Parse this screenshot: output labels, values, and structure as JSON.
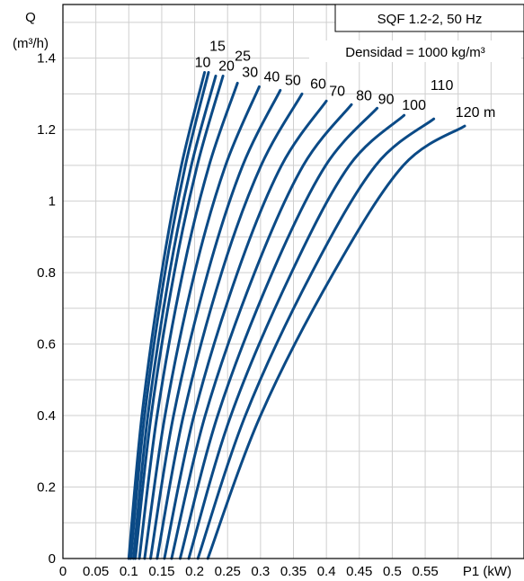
{
  "chart_data": {
    "type": "line",
    "title": "SQF 1.2-2, 50 Hz",
    "subtitle": "Densidad = 1000 kg/m³",
    "ylabel_top": "Q",
    "ylabel_unit": "(m³/h)",
    "xlabel": "P1 (kW)",
    "xlim": [
      0,
      0.7
    ],
    "ylim": [
      0,
      1.55
    ],
    "x_ticks": [
      "0",
      "0.05",
      "0.1",
      "0.15",
      "0.2",
      "0.25",
      "0.3",
      "0.35",
      "0.4",
      "0.45",
      "0.5",
      "0.55"
    ],
    "y_ticks": [
      "0",
      "0.2",
      "0.4",
      "0.6",
      "0.8",
      "1",
      "1.2",
      "1.4"
    ],
    "grid": true,
    "line_color": "#0b4a86",
    "series": [
      {
        "name": "10",
        "x": [
          0.1,
          0.12,
          0.15,
          0.18,
          0.215
        ],
        "y": [
          0,
          0.4,
          0.8,
          1.1,
          1.36
        ]
      },
      {
        "name": "15",
        "x": [
          0.103,
          0.124,
          0.155,
          0.186,
          0.221
        ],
        "y": [
          0,
          0.4,
          0.8,
          1.1,
          1.36
        ]
      },
      {
        "name": "20",
        "x": [
          0.107,
          0.129,
          0.162,
          0.195,
          0.232
        ],
        "y": [
          0,
          0.4,
          0.8,
          1.1,
          1.35
        ]
      },
      {
        "name": "25",
        "x": [
          0.11,
          0.134,
          0.169,
          0.204,
          0.243
        ],
        "y": [
          0,
          0.4,
          0.8,
          1.1,
          1.35
        ]
      },
      {
        "name": "30",
        "x": [
          0.116,
          0.143,
          0.182,
          0.222,
          0.265
        ],
        "y": [
          0,
          0.4,
          0.8,
          1.1,
          1.33
        ]
      },
      {
        "name": "40",
        "x": [
          0.124,
          0.155,
          0.2,
          0.247,
          0.298
        ],
        "y": [
          0,
          0.4,
          0.8,
          1.1,
          1.32
        ]
      },
      {
        "name": "50",
        "x": [
          0.133,
          0.168,
          0.22,
          0.273,
          0.33
        ],
        "y": [
          0,
          0.4,
          0.8,
          1.1,
          1.31
        ]
      },
      {
        "name": "60",
        "x": [
          0.143,
          0.183,
          0.241,
          0.301,
          0.363
        ],
        "y": [
          0,
          0.4,
          0.8,
          1.1,
          1.3
        ]
      },
      {
        "name": "70",
        "x": [
          0.154,
          0.199,
          0.265,
          0.332,
          0.4
        ],
        "y": [
          0,
          0.4,
          0.8,
          1.1,
          1.28
        ]
      },
      {
        "name": "80",
        "x": [
          0.165,
          0.216,
          0.291,
          0.365,
          0.438
        ],
        "y": [
          0,
          0.4,
          0.8,
          1.1,
          1.27
        ]
      },
      {
        "name": "90",
        "x": [
          0.178,
          0.235,
          0.318,
          0.399,
          0.477
        ],
        "y": [
          0,
          0.4,
          0.8,
          1.1,
          1.26
        ]
      },
      {
        "name": "100",
        "x": [
          0.191,
          0.255,
          0.347,
          0.435,
          0.518
        ],
        "y": [
          0,
          0.4,
          0.8,
          1.1,
          1.24
        ]
      },
      {
        "name": "110",
        "x": [
          0.205,
          0.277,
          0.378,
          0.475,
          0.563
        ],
        "y": [
          0,
          0.4,
          0.8,
          1.1,
          1.23
        ]
      },
      {
        "name": "120 m",
        "x": [
          0.22,
          0.3,
          0.411,
          0.517,
          0.61
        ],
        "y": [
          0,
          0.4,
          0.8,
          1.1,
          1.21
        ]
      }
    ]
  }
}
